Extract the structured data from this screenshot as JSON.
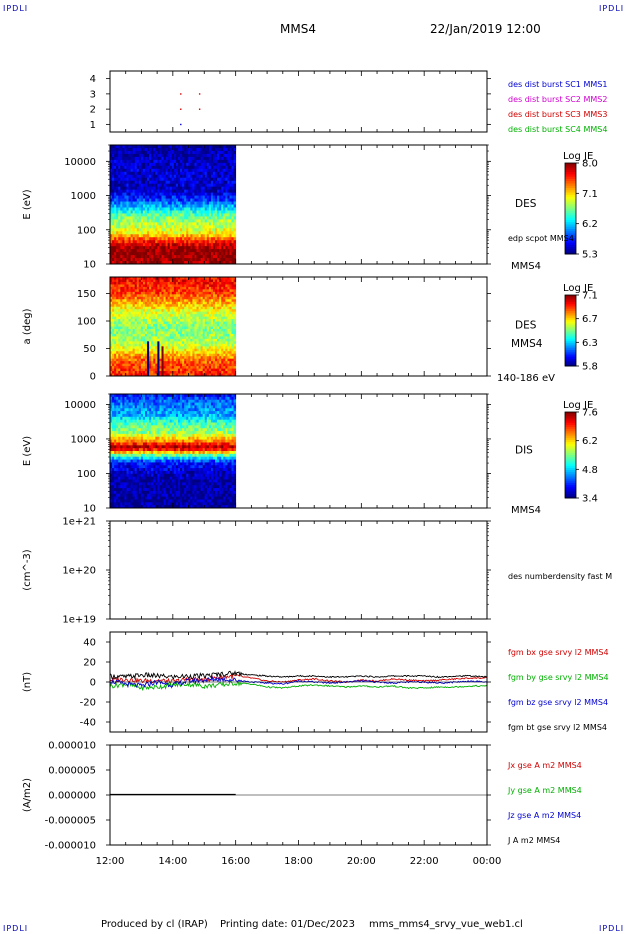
{
  "header": {
    "corner_label": "IPDLI",
    "title": "MMS4",
    "datetime": "22/Jan/2019 12:00"
  },
  "footer": {
    "produced_by": "Produced by cl (IRAP)",
    "printing_date": "Printing date: 01/Dec/2023",
    "filename": "mms_mms4_srvy_vue_web1.cl"
  },
  "time_axis": {
    "ticks": [
      "12:00",
      "14:00",
      "16:00",
      "18:00",
      "20:00",
      "22:00",
      "00:00"
    ],
    "start_hours": 12,
    "end_hours": 24,
    "data_end_hours": 16
  },
  "chart_data": [
    {
      "type": "scatter",
      "name": "burst-availability",
      "ylim": [
        0.5,
        4.5
      ],
      "yticks": [
        "1",
        "2",
        "3",
        "4"
      ],
      "legend": [
        {
          "label": "des dist burst SC1 MMS1",
          "color": "#0000d0"
        },
        {
          "label": "des dist burst SC2 MMS2",
          "color": "#d000d0"
        },
        {
          "label": "des dist burst SC3 MMS3",
          "color": "#d00000"
        },
        {
          "label": "des dist burst SC4 MMS4",
          "color": "#00b000"
        }
      ],
      "points": [
        {
          "x": 14.25,
          "y": 1,
          "color": "#0000d0"
        },
        {
          "x": 14.25,
          "y": 2,
          "color": "#d00000"
        },
        {
          "x": 14.85,
          "y": 2,
          "color": "#d00000"
        },
        {
          "x": 14.25,
          "y": 3,
          "color": "#d00000"
        },
        {
          "x": 14.85,
          "y": 3,
          "color": "#d00000"
        }
      ]
    },
    {
      "type": "heatmap",
      "name": "des-energy",
      "ylabel": "E (eV)",
      "yscale": "log",
      "ylim": [
        10,
        30000
      ],
      "yticks": [
        "10",
        "100",
        "1000",
        "10000"
      ],
      "side_label": "DES",
      "side_label2": "edp scpot MMS4",
      "side_label3": "MMS4",
      "colorbar": {
        "title": "Log JE",
        "min": 5.3,
        "max": 8.0,
        "ticks": [
          "8.0",
          "7.1",
          "6.2",
          "5.3"
        ]
      },
      "profile": [
        {
          "e": 10,
          "v": 7.9
        },
        {
          "e": 22,
          "v": 8.0
        },
        {
          "e": 35,
          "v": 7.8
        },
        {
          "e": 55,
          "v": 7.4
        },
        {
          "e": 80,
          "v": 7.0
        },
        {
          "e": 130,
          "v": 6.8
        },
        {
          "e": 250,
          "v": 6.6
        },
        {
          "e": 420,
          "v": 6.2
        },
        {
          "e": 700,
          "v": 5.8
        },
        {
          "e": 1300,
          "v": 5.5
        },
        {
          "e": 30000,
          "v": 5.35
        }
      ]
    },
    {
      "type": "heatmap",
      "name": "des-pitch-angle",
      "ylabel": "a (deg)",
      "ylim": [
        0,
        180
      ],
      "yticks": [
        "0",
        "50",
        "100",
        "150"
      ],
      "side_label": "DES",
      "side_label2": "MMS4",
      "side_label3": "140-186 eV",
      "colorbar": {
        "title": "Log JE",
        "min": 5.8,
        "max": 7.1,
        "ticks": [
          "7.1",
          "6.7",
          "6.3",
          "5.8"
        ]
      },
      "profile": [
        {
          "a": 0,
          "v": 6.9
        },
        {
          "a": 30,
          "v": 6.8
        },
        {
          "a": 60,
          "v": 6.5
        },
        {
          "a": 90,
          "v": 6.45
        },
        {
          "a": 120,
          "v": 6.6
        },
        {
          "a": 150,
          "v": 6.85
        },
        {
          "a": 180,
          "v": 6.95
        }
      ]
    },
    {
      "type": "heatmap",
      "name": "dis-energy",
      "ylabel": "E (eV)",
      "yscale": "log",
      "ylim": [
        10,
        20000
      ],
      "yticks": [
        "10",
        "100",
        "1000",
        "10000"
      ],
      "side_label": "DIS",
      "side_label3": "MMS4",
      "colorbar": {
        "title": "Log JE",
        "min": 3.4,
        "max": 7.6,
        "ticks": [
          "7.6",
          "6.2",
          "4.8",
          "3.4"
        ]
      },
      "profile": [
        {
          "e": 10,
          "v": 3.5
        },
        {
          "e": 80,
          "v": 3.6
        },
        {
          "e": 200,
          "v": 4.0
        },
        {
          "e": 320,
          "v": 5.2
        },
        {
          "e": 450,
          "v": 6.8
        },
        {
          "e": 600,
          "v": 7.4
        },
        {
          "e": 800,
          "v": 6.6
        },
        {
          "e": 1500,
          "v": 5.6
        },
        {
          "e": 5000,
          "v": 4.6
        },
        {
          "e": 20000,
          "v": 4.0
        }
      ]
    },
    {
      "type": "line",
      "name": "density",
      "ylabel": "(cm^-3)",
      "yscale": "log",
      "ylim": [
        1e+19,
        1e+21
      ],
      "yticks": [
        "1e+19",
        "1e+20",
        "1e+21"
      ],
      "legend": [
        {
          "label": "des numberdensity fast M",
          "color": "#000000"
        }
      ],
      "series": []
    },
    {
      "type": "line",
      "name": "magnetic-field",
      "ylabel": "(nT)",
      "ylim": [
        -50,
        50
      ],
      "yticks": [
        "-40",
        "-20",
        "0",
        "20",
        "40"
      ],
      "legend": [
        {
          "label": "fgm bx gse srvy l2 MMS4",
          "color": "#d00000"
        },
        {
          "label": "fgm by gse srvy l2 MMS4",
          "color": "#00b000"
        },
        {
          "label": "fgm bz gse srvy l2 MMS4",
          "color": "#0000d0"
        },
        {
          "label": "fgm bt gse srvy l2 MMS4",
          "color": "#000000"
        }
      ],
      "series": [
        {
          "color": "#d00000",
          "x": [
            12,
            12.5,
            13,
            13.5,
            14,
            14.5,
            15,
            15.5,
            16,
            16.5,
            17,
            17.5,
            18,
            18.5,
            19,
            19.5,
            20,
            20.5,
            21,
            21.5,
            22,
            22.5,
            23,
            23.5,
            24
          ],
          "y": [
            2,
            3,
            1,
            2,
            0,
            3,
            2,
            5,
            6,
            4,
            1,
            0,
            2,
            3,
            1,
            0,
            2,
            1,
            3,
            2,
            1,
            2,
            3,
            4,
            4
          ]
        },
        {
          "color": "#00b000",
          "x": [
            12,
            12.5,
            13,
            13.5,
            14,
            14.5,
            15,
            15.5,
            16,
            16.5,
            17,
            17.5,
            18,
            18.5,
            19,
            19.5,
            20,
            20.5,
            21,
            21.5,
            22,
            22.5,
            23,
            23.5,
            24
          ],
          "y": [
            -4,
            -2,
            -6,
            -5,
            -3,
            -2,
            -4,
            -3,
            -1,
            -2,
            -5,
            -6,
            -4,
            -3,
            -4,
            -5,
            -4,
            -5,
            -4,
            -6,
            -6,
            -5,
            -5,
            -4,
            -4
          ]
        },
        {
          "color": "#0000d0",
          "x": [
            12,
            12.5,
            13,
            13.5,
            14,
            14.5,
            15,
            15.5,
            16,
            16.5,
            17,
            17.5,
            18,
            18.5,
            19,
            19.5,
            20,
            20.5,
            21,
            21.5,
            22,
            22.5,
            23,
            23.5,
            24
          ],
          "y": [
            1,
            -2,
            -4,
            0,
            -3,
            1,
            2,
            3,
            2,
            0,
            -1,
            -2,
            1,
            0,
            -1,
            0,
            1,
            0,
            -1,
            0,
            0,
            -1,
            0,
            1,
            0
          ]
        },
        {
          "color": "#000000",
          "x": [
            12,
            12.5,
            13,
            13.5,
            14,
            14.5,
            15,
            15.5,
            16,
            16.5,
            17,
            17.5,
            18,
            18.5,
            19,
            19.5,
            20,
            20.5,
            21,
            21.5,
            22,
            22.5,
            23,
            23.5,
            24
          ],
          "y": [
            6,
            5,
            7,
            6,
            5,
            6,
            6,
            8,
            9,
            7,
            6,
            5,
            6,
            6,
            5,
            5,
            6,
            5,
            6,
            6,
            6,
            5,
            6,
            6,
            5
          ]
        }
      ]
    },
    {
      "type": "line",
      "name": "current-density",
      "ylabel": "(A/m2)",
      "ylim": [
        -1e-05,
        1e-05
      ],
      "yticks": [
        "-0.000010",
        "-0.000005",
        "0.000000",
        "0.000005",
        "0.000010"
      ],
      "legend": [
        {
          "label": "Jx gse A m2 MMS4",
          "color": "#d00000"
        },
        {
          "label": "Jy gse A m2 MMS4",
          "color": "#00b000"
        },
        {
          "label": "Jz gse A m2 MMS4",
          "color": "#0000d0"
        },
        {
          "label": "J A m2 MMS4",
          "color": "#000000"
        }
      ],
      "series": [
        {
          "color": "#000000",
          "x": [
            12.0,
            16.0
          ],
          "y": [
            1e-07,
            1e-07
          ]
        }
      ]
    }
  ]
}
